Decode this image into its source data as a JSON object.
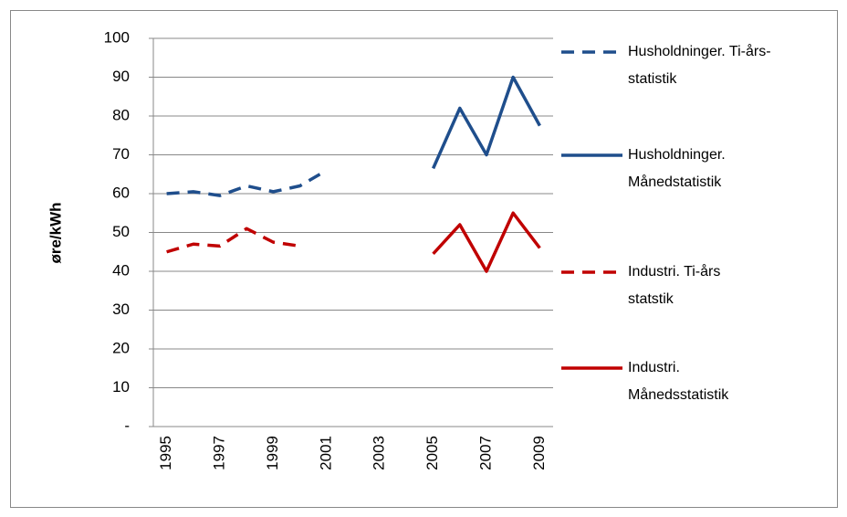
{
  "chart_data": {
    "type": "line",
    "y_label": "øre/kWh",
    "categories": [
      "1995",
      null,
      "1997",
      null,
      "1999",
      null,
      "2001",
      null,
      "2003",
      null,
      "2005",
      null,
      "2007",
      null,
      "2009"
    ],
    "series": [
      {
        "name": "Husholdninger. Ti-års-statistik",
        "color": "#1f4e8c",
        "line_style": "dashed",
        "values": [
          60,
          60.5,
          59.5,
          62,
          60.5,
          62,
          66,
          null,
          null,
          null,
          null,
          null,
          null,
          null,
          null
        ]
      },
      {
        "name": "Husholdninger. Månedstatistik",
        "color": "#1f4e8c",
        "line_style": "solid",
        "values": [
          null,
          null,
          null,
          null,
          null,
          null,
          null,
          null,
          null,
          null,
          66.5,
          82,
          70,
          90,
          77.5
        ]
      },
      {
        "name": "Industri. Ti-års statstik",
        "color": "#c00000",
        "line_style": "dashed",
        "values": [
          45,
          47,
          46.5,
          51,
          47.5,
          46.5,
          null,
          null,
          null,
          null,
          null,
          null,
          null,
          null,
          null
        ]
      },
      {
        "name": "Industri. Månedsstatistik",
        "color": "#c00000",
        "line_style": "solid",
        "values": [
          null,
          null,
          null,
          null,
          null,
          null,
          null,
          null,
          null,
          null,
          44.5,
          52,
          40,
          55,
          46
        ]
      }
    ],
    "ylim": [
      0,
      100
    ],
    "yticks": [
      {
        "value": 0,
        "label": "-"
      },
      10,
      20,
      30,
      40,
      50,
      60,
      70,
      80,
      90,
      100
    ],
    "grid": true
  }
}
